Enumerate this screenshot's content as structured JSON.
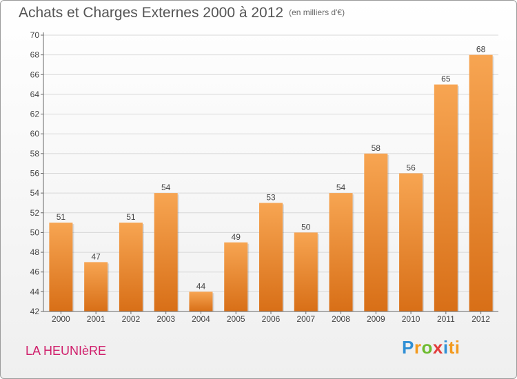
{
  "header": {
    "title": "Achats et Charges Externes 2000 à 2012",
    "subtitle": "(en milliers d'€)"
  },
  "footer": {
    "place": "LA HEUNIèRE",
    "logo_letters": [
      "P",
      "r",
      "o",
      "x",
      "i",
      "ti"
    ]
  },
  "colors": {
    "bar_top": "#f7a552",
    "bar_bottom": "#d86f17",
    "grid": "#d8d8d8",
    "axis_text": "#444444"
  },
  "chart_data": {
    "type": "bar",
    "categories": [
      "2000",
      "2001",
      "2002",
      "2003",
      "2004",
      "2005",
      "2006",
      "2007",
      "2008",
      "2009",
      "2010",
      "2011",
      "2012"
    ],
    "values": [
      51,
      47,
      51,
      54,
      44,
      49,
      53,
      50,
      54,
      58,
      56,
      65,
      68
    ],
    "ylim": [
      42,
      70
    ],
    "yticks": [
      42,
      44,
      46,
      48,
      50,
      52,
      54,
      56,
      58,
      60,
      62,
      64,
      66,
      68,
      70
    ],
    "grid": true
  }
}
